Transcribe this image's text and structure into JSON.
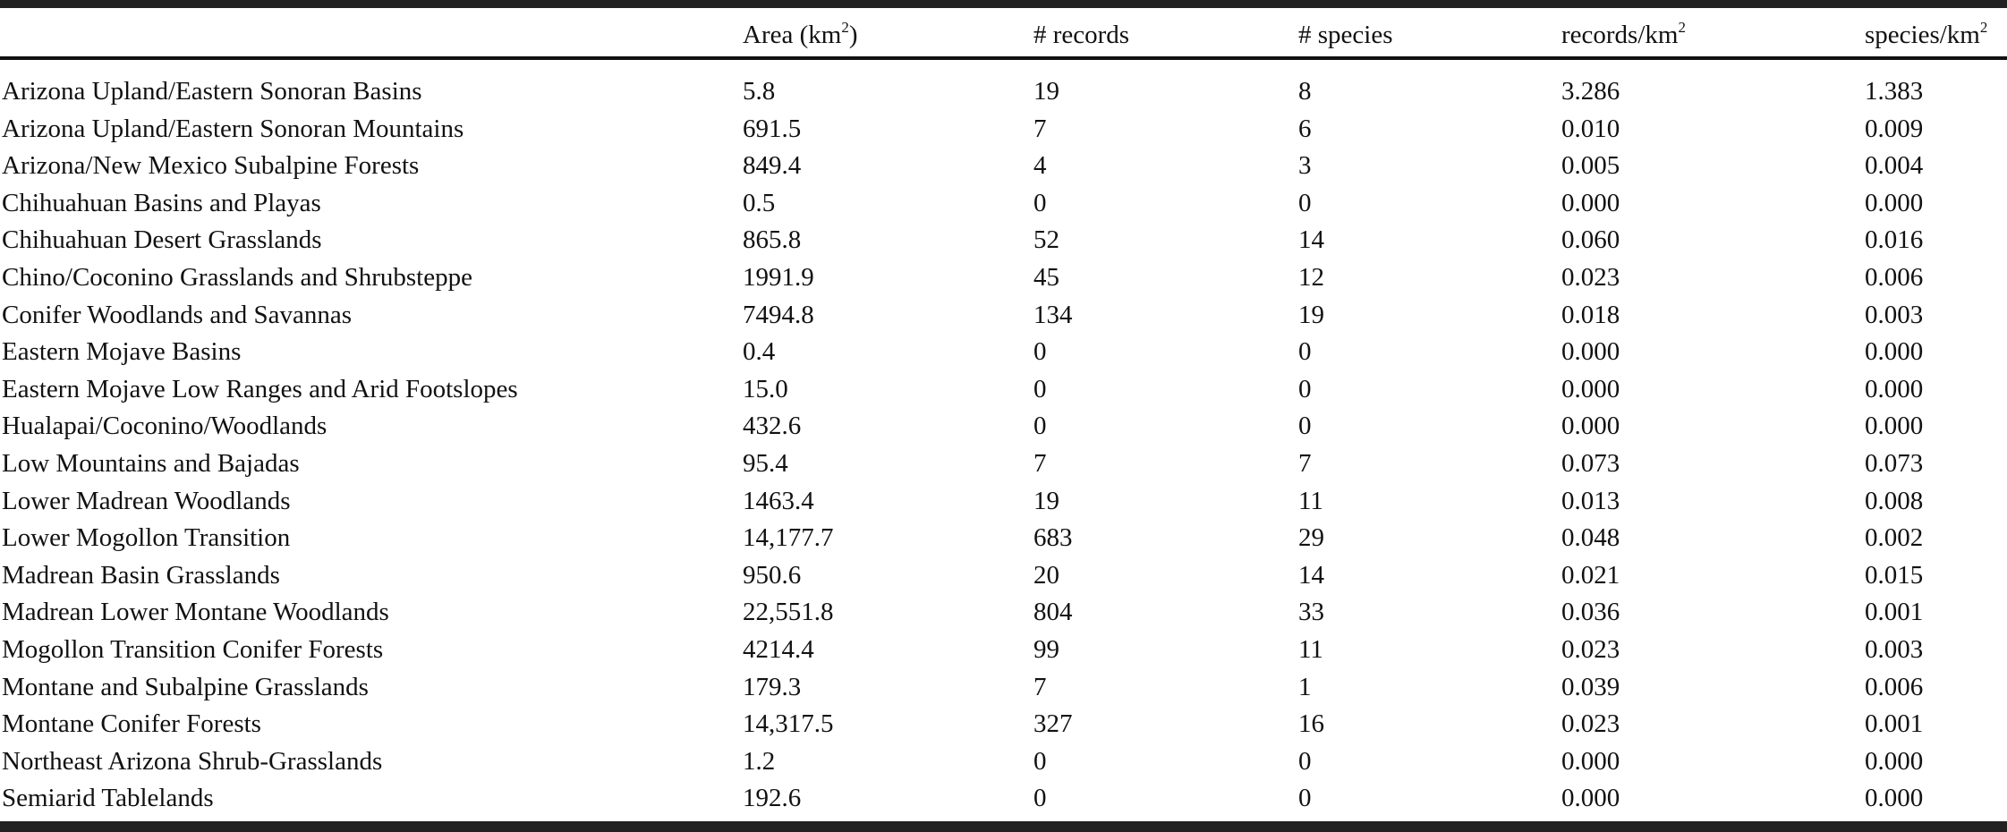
{
  "table": {
    "headers": [
      {
        "text": "",
        "sup": ""
      },
      {
        "text": "Area (km",
        "sup": "2",
        "suffix": ")"
      },
      {
        "text": "# records",
        "sup": "",
        "suffix": ""
      },
      {
        "text": "# species",
        "sup": "",
        "suffix": ""
      },
      {
        "text": "records/km",
        "sup": "2",
        "suffix": ""
      },
      {
        "text": "species/km",
        "sup": "2",
        "suffix": ""
      }
    ],
    "rows": [
      [
        "Arizona Upland/Eastern Sonoran Basins",
        "5.8",
        "19",
        "8",
        "3.286",
        "1.383"
      ],
      [
        "Arizona Upland/Eastern Sonoran Mountains",
        "691.5",
        "7",
        "6",
        "0.010",
        "0.009"
      ],
      [
        "Arizona/New Mexico Subalpine Forests",
        "849.4",
        "4",
        "3",
        "0.005",
        "0.004"
      ],
      [
        "Chihuahuan Basins and Playas",
        "0.5",
        "0",
        "0",
        "0.000",
        "0.000"
      ],
      [
        "Chihuahuan Desert Grasslands",
        "865.8",
        "52",
        "14",
        "0.060",
        "0.016"
      ],
      [
        "Chino/Coconino Grasslands and Shrubsteppe",
        "1991.9",
        "45",
        "12",
        "0.023",
        "0.006"
      ],
      [
        "Conifer Woodlands and Savannas",
        "7494.8",
        "134",
        "19",
        "0.018",
        "0.003"
      ],
      [
        "Eastern Mojave Basins",
        "0.4",
        "0",
        "0",
        "0.000",
        "0.000"
      ],
      [
        "Eastern Mojave Low Ranges and Arid Footslopes",
        "15.0",
        "0",
        "0",
        "0.000",
        "0.000"
      ],
      [
        "Hualapai/Coconino/Woodlands",
        "432.6",
        "0",
        "0",
        "0.000",
        "0.000"
      ],
      [
        "Low Mountains and Bajadas",
        "95.4",
        "7",
        "7",
        "0.073",
        "0.073"
      ],
      [
        "Lower Madrean Woodlands",
        "1463.4",
        "19",
        "11",
        "0.013",
        "0.008"
      ],
      [
        "Lower Mogollon Transition",
        "14,177.7",
        "683",
        "29",
        "0.048",
        "0.002"
      ],
      [
        "Madrean Basin Grasslands",
        "950.6",
        "20",
        "14",
        "0.021",
        "0.015"
      ],
      [
        "Madrean Lower Montane Woodlands",
        "22,551.8",
        "804",
        "33",
        "0.036",
        "0.001"
      ],
      [
        "Mogollon Transition Conifer Forests",
        "4214.4",
        "99",
        "11",
        "0.023",
        "0.003"
      ],
      [
        "Montane and Subalpine Grasslands",
        "179.3",
        "7",
        "1",
        "0.039",
        "0.006"
      ],
      [
        "Montane Conifer Forests",
        "14,317.5",
        "327",
        "16",
        "0.023",
        "0.001"
      ],
      [
        "Northeast Arizona Shrub-Grasslands",
        "1.2",
        "0",
        "0",
        "0.000",
        "0.000"
      ],
      [
        "Semiarid Tablelands",
        "192.6",
        "0",
        "0",
        "0.000",
        "0.000"
      ]
    ]
  }
}
